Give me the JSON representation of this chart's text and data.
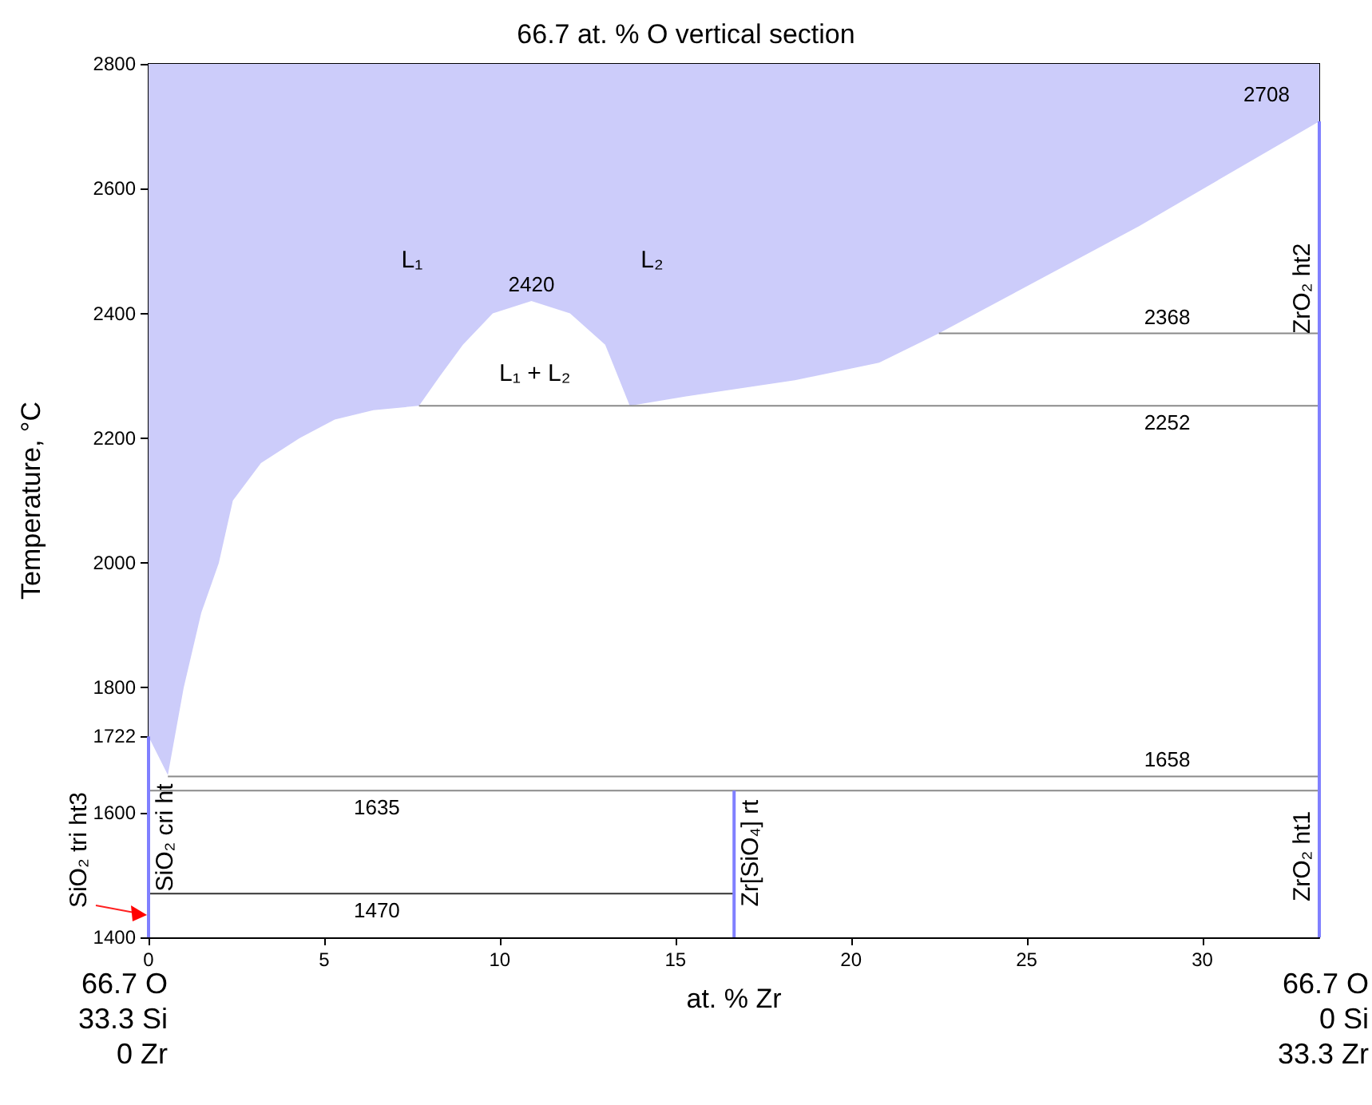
{
  "chart_data": {
    "type": "line",
    "title": "66.7 at. % O vertical section",
    "xlabel": "at. % Zr",
    "ylabel": "Temperature, °C",
    "xlim": [
      0,
      33.33
    ],
    "xticks": [
      0,
      5,
      10,
      15,
      20,
      25,
      30
    ],
    "ylim": [
      1400,
      2800
    ],
    "yticks": [
      1400,
      1600,
      {
        "value": 1722,
        "label": "1722"
      },
      1800,
      2000,
      2200,
      2400,
      2600,
      2800
    ],
    "marker": "none",
    "line_style": "solid",
    "bands": [
      {
        "axis": "y",
        "from": 1400,
        "to": 2800,
        "color": "#ccccfa"
      }
    ],
    "series": [
      {
        "type": "area",
        "color": "#ffffff",
        "x": [
          0,
          0.55,
          1.0,
          1.5,
          2.0,
          2.4,
          3.2,
          4.3,
          5.3,
          6.4,
          7.7,
          8.3,
          8.95,
          9.8,
          10.9,
          12.0,
          13.0,
          13.7,
          15.3,
          18.4,
          20.8,
          22.5,
          28.2,
          33.33
        ],
        "values": [
          1722,
          1660,
          1800,
          1920,
          2000,
          2100,
          2160,
          2200,
          2230,
          2245,
          2252,
          2300,
          2350,
          2400,
          2420,
          2400,
          2350,
          2252,
          2267,
          2293,
          2321,
          2368,
          2540,
          2708
        ]
      },
      {
        "color": "#8a8a8a",
        "x": [
          22.5,
          33.33
        ],
        "values": [
          2368,
          2368
        ]
      },
      {
        "color": "#8a8a8a",
        "x": [
          7.7,
          33.33
        ],
        "values": [
          2252,
          2252
        ]
      },
      {
        "color": "#8a8a8a",
        "x": [
          0.55,
          33.33
        ],
        "values": [
          1658,
          1658
        ]
      },
      {
        "color": "#8a8a8a",
        "x": [
          0,
          33.33
        ],
        "values": [
          1635,
          1635
        ]
      },
      {
        "color": "#333333",
        "x": [
          0,
          16.67
        ],
        "values": [
          1470,
          1470
        ]
      },
      {
        "color": "#8080ff",
        "x": [
          0,
          0
        ],
        "values": [
          1400,
          1722
        ]
      },
      {
        "color": "#8080ff",
        "x": [
          16.67,
          16.67
        ],
        "values": [
          1400,
          1635
        ]
      },
      {
        "color": "#8080ff",
        "x": [
          33.33,
          33.33
        ],
        "values": [
          1400,
          2708
        ]
      }
    ],
    "annotations": [
      "L₁",
      {
        "text": "2420",
        "x": 10.9,
        "y": 2420
      },
      "L₂",
      "L₁ + L₂",
      "2708",
      {
        "text": "2368",
        "x": 29,
        "y": 2368
      },
      {
        "text": "2252",
        "x": 29,
        "y": 2252
      },
      {
        "text": "1658",
        "x": 29,
        "y": 1658
      },
      {
        "text": "1635",
        "x": 6.5,
        "y": 1635
      },
      {
        "text": "1470",
        "x": 6.5,
        "y": 1470
      },
      {
        "text": "ZrO₂ ht2",
        "x": 33.33,
        "y": 2440
      },
      {
        "text": "ZrO₂ ht1",
        "x": 33.33,
        "y": 1530
      },
      {
        "text": "Zr[SiO₄] rt",
        "x": 16.67,
        "y": 1535
      },
      {
        "text": "SiO₂ cri ht",
        "x": 0,
        "y": 1560
      },
      {
        "text": "SiO₂ tri ht3",
        "x": 0,
        "y": 1540
      },
      "66.7 O\n33.3 Si\n0 Zr",
      "66.7 O\n0 Si\n33.3 Zr"
    ]
  }
}
